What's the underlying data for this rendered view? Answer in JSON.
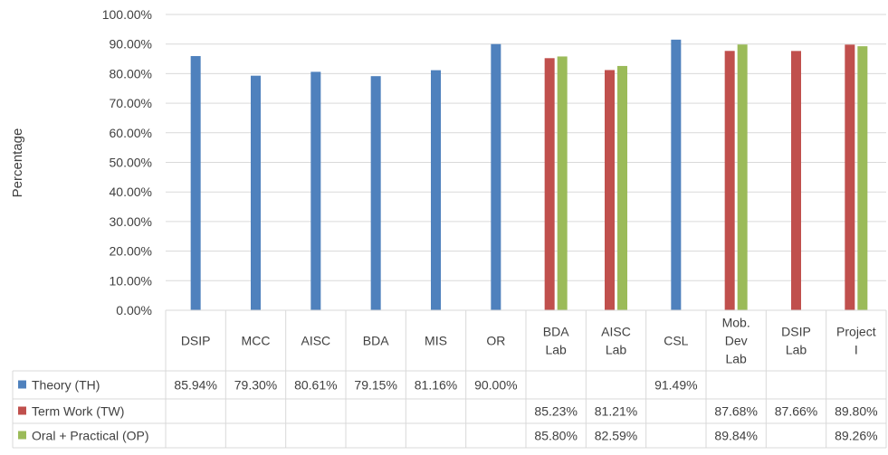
{
  "chart_data": {
    "type": "bar",
    "title": "",
    "xlabel": "",
    "ylabel": "Percentage",
    "ylim": [
      0,
      100
    ],
    "y_ticks": [
      "0.00%",
      "10.00%",
      "20.00%",
      "30.00%",
      "40.00%",
      "50.00%",
      "60.00%",
      "70.00%",
      "80.00%",
      "90.00%",
      "100.00%"
    ],
    "grid": true,
    "legend": "data-table",
    "categories": [
      [
        "DSIP"
      ],
      [
        "MCC"
      ],
      [
        "AISC"
      ],
      [
        "BDA"
      ],
      [
        "MIS"
      ],
      [
        "OR"
      ],
      [
        "BDA",
        "Lab"
      ],
      [
        "AISC",
        "Lab"
      ],
      [
        "CSL"
      ],
      [
        "Mob.",
        "Dev",
        "Lab"
      ],
      [
        "DSIP",
        "Lab"
      ],
      [
        "Project",
        "I"
      ]
    ],
    "series": [
      {
        "name": "Theory (TH)",
        "color": "#4f81bd",
        "values": [
          85.94,
          79.3,
          80.61,
          79.15,
          81.16,
          90.0,
          null,
          null,
          91.49,
          null,
          null,
          null
        ],
        "labels": [
          "85.94%",
          "79.30%",
          "80.61%",
          "79.15%",
          "81.16%",
          "90.00%",
          "",
          "",
          "91.49%",
          "",
          "",
          ""
        ]
      },
      {
        "name": "Term Work (TW)",
        "color": "#c0504d",
        "values": [
          null,
          null,
          null,
          null,
          null,
          null,
          85.23,
          81.21,
          null,
          87.68,
          87.66,
          89.8
        ],
        "labels": [
          "",
          "",
          "",
          "",
          "",
          "",
          "85.23%",
          "81.21%",
          "",
          "87.68%",
          "87.66%",
          "89.80%"
        ]
      },
      {
        "name": "Oral + Practical (OP)",
        "color": "#9bbb59",
        "values": [
          null,
          null,
          null,
          null,
          null,
          null,
          85.8,
          82.59,
          null,
          89.84,
          null,
          89.26
        ],
        "labels": [
          "",
          "",
          "",
          "",
          "",
          "",
          "85.80%",
          "82.59%",
          "",
          "89.84%",
          "",
          "89.26%"
        ]
      }
    ]
  }
}
